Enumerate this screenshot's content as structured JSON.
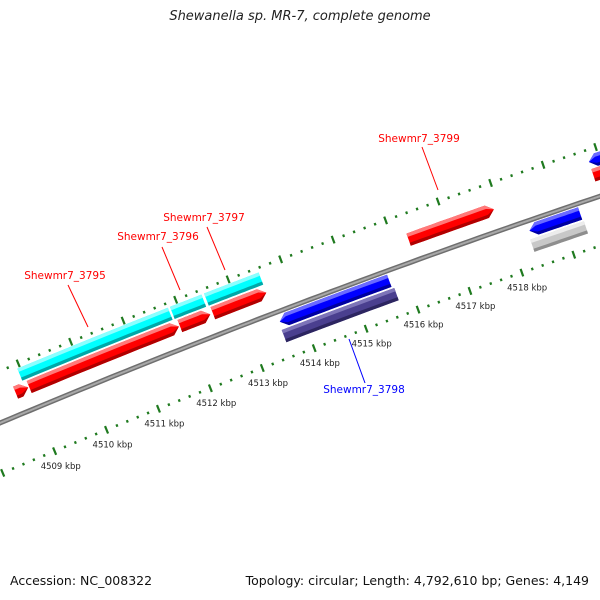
{
  "title": "Shewanella sp. MR-7, complete genome",
  "footer": {
    "accession": "Accession: NC_008322",
    "summary": "Topology: circular; Length: 4,792,610 bp; Genes: 4,149"
  },
  "axis": {
    "unit": "kbp",
    "major_labels": [
      4509,
      4510,
      4511,
      4512,
      4513,
      4514,
      4515,
      4516,
      4517,
      4518
    ],
    "minor_step_kbp": 0.2
  },
  "colors": {
    "backbone": "#8a8a8a",
    "ticks": "#1f7a1f",
    "label_forward": "#ff0000",
    "label_reverse": "#0000ff"
  },
  "features": [
    {
      "ring": "cyan",
      "start": 4508.95,
      "end": 4511.82,
      "strand": "none",
      "label": "Shewmr7_3795"
    },
    {
      "ring": "cyan",
      "start": 4511.86,
      "end": 4512.46,
      "strand": "none",
      "label": "Shewmr7_3796"
    },
    {
      "ring": "cyan",
      "start": 4512.51,
      "end": 4513.55,
      "strand": "none",
      "label": "Shewmr7_3797"
    },
    {
      "ring": "red",
      "start": 4508.76,
      "end": 4509.0,
      "strand": "forward"
    },
    {
      "ring": "red",
      "start": 4509.02,
      "end": 4511.88,
      "strand": "forward"
    },
    {
      "ring": "red",
      "start": 4511.9,
      "end": 4512.48,
      "strand": "forward"
    },
    {
      "ring": "red",
      "start": 4512.53,
      "end": 4513.55,
      "strand": "forward"
    },
    {
      "ring": "red",
      "start": 4516.27,
      "end": 4517.9,
      "strand": "forward",
      "label": "Shewmr7_3799"
    },
    {
      "ring": "red",
      "start": 4519.8,
      "end": 4521.5,
      "strand": "forward"
    },
    {
      "ring": "bluetop",
      "start": 4519.8,
      "end": 4521.5,
      "strand": "reverse"
    },
    {
      "ring": "blue",
      "start": 4513.59,
      "end": 4515.69,
      "strand": "reverse"
    },
    {
      "ring": "indigo",
      "start": 4513.57,
      "end": 4515.73,
      "strand": "none",
      "label": "Shewmr7_3798"
    },
    {
      "ring": "blue",
      "start": 4518.38,
      "end": 4519.35,
      "strand": "reverse"
    },
    {
      "ring": "grey",
      "start": 4518.34,
      "end": 4519.37,
      "strand": "none"
    }
  ]
}
